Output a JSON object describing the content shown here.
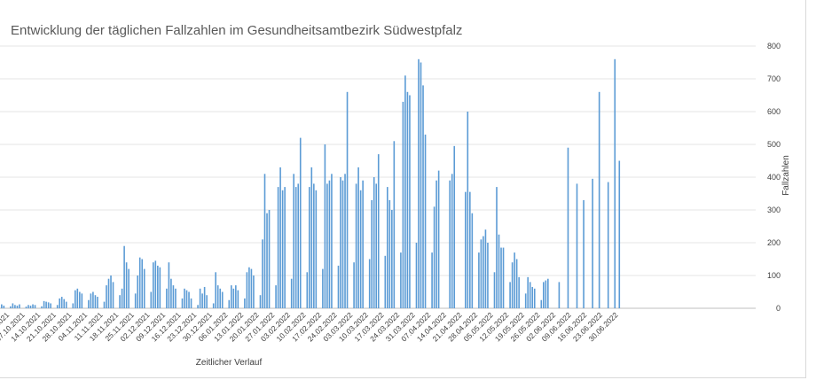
{
  "chart_data": {
    "type": "bar",
    "title": "Entwicklung der täglichen Fallzahlen im Gesundheitsamtbezirk Südwestpfalz",
    "xlabel": "Zeitlicher Verlauf",
    "ylabel": "Fallzahlen",
    "ylim": [
      0,
      800
    ],
    "yticks": [
      0,
      100,
      200,
      300,
      400,
      500,
      600,
      700,
      800
    ],
    "y_axis_side": "right",
    "grid": true,
    "legend": "none",
    "bar_color": "#5b9bd5",
    "x_tick_labels": [
      "30.09.2021",
      "07.10.2021",
      "14.10.2021",
      "21.10.2021",
      "28.10.2021",
      "04.11.2021",
      "11.11.2021",
      "18.11.2021",
      "25.11.2021",
      "02.12.2021",
      "09.12.2021",
      "16.12.2021",
      "23.12.2021",
      "30.12.2021",
      "06.01.2022",
      "13.01.2022",
      "20.01.2022",
      "27.01.2022",
      "03.02.2022",
      "10.02.2022",
      "17.02.2022",
      "24.02.2022",
      "03.03.2022",
      "10.03.2022",
      "17.03.2022",
      "24.03.2022",
      "31.03.2022",
      "07.04.2022",
      "14.04.2022",
      "21.04.2022",
      "28.04.2022",
      "05.05.2022",
      "12.05.2022",
      "19.05.2022",
      "26.05.2022",
      "02.06.2022",
      "09.06.2022",
      "16.06.2022",
      "23.06.2022",
      "30.06.2022"
    ],
    "weeks": [
      [
        10,
        5,
        12,
        8,
        0,
        0,
        6
      ],
      [
        15,
        10,
        8,
        12,
        0,
        0,
        5
      ],
      [
        10,
        8,
        12,
        10,
        0,
        0,
        6
      ],
      [
        22,
        20,
        18,
        15,
        0,
        0,
        10
      ],
      [
        30,
        35,
        28,
        20,
        0,
        0,
        15
      ],
      [
        55,
        60,
        50,
        45,
        0,
        0,
        25
      ],
      [
        45,
        50,
        40,
        35,
        0,
        0,
        20
      ],
      [
        70,
        90,
        100,
        80,
        0,
        0,
        40
      ],
      [
        60,
        190,
        140,
        120,
        0,
        0,
        45
      ],
      [
        100,
        155,
        150,
        120,
        0,
        0,
        50
      ],
      [
        140,
        145,
        130,
        125,
        0,
        0,
        60
      ],
      [
        140,
        90,
        70,
        60,
        0,
        0,
        30
      ],
      [
        60,
        55,
        50,
        30,
        0,
        0,
        10
      ],
      [
        60,
        45,
        65,
        40,
        0,
        0,
        15
      ],
      [
        110,
        70,
        60,
        50,
        0,
        0,
        25
      ],
      [
        70,
        60,
        70,
        55,
        0,
        0,
        30
      ],
      [
        110,
        125,
        120,
        100,
        0,
        0,
        40
      ],
      [
        210,
        410,
        290,
        300,
        0,
        0,
        70
      ],
      [
        370,
        430,
        360,
        370,
        0,
        0,
        90
      ],
      [
        410,
        370,
        380,
        520,
        0,
        0,
        110
      ],
      [
        370,
        430,
        380,
        360,
        0,
        0,
        120
      ],
      [
        500,
        380,
        390,
        410,
        0,
        0,
        130
      ],
      [
        400,
        390,
        410,
        660,
        0,
        0,
        140
      ],
      [
        380,
        430,
        360,
        390,
        0,
        0,
        150
      ],
      [
        330,
        400,
        380,
        470,
        0,
        0,
        160
      ],
      [
        370,
        330,
        300,
        510,
        0,
        0,
        170
      ],
      [
        630,
        710,
        660,
        650,
        0,
        0,
        200
      ],
      [
        760,
        750,
        680,
        530,
        0,
        0,
        170
      ],
      [
        310,
        390,
        420,
        0,
        0,
        0,
        0
      ],
      [
        390,
        410,
        495,
        0,
        0,
        0,
        0
      ],
      [
        355,
        600,
        355,
        290,
        0,
        0,
        170
      ],
      [
        210,
        220,
        240,
        200,
        0,
        0,
        110
      ],
      [
        370,
        225,
        185,
        185,
        0,
        0,
        80
      ],
      [
        140,
        170,
        150,
        95,
        0,
        0,
        45
      ],
      [
        95,
        80,
        65,
        60,
        0,
        0,
        25
      ],
      [
        80,
        85,
        90,
        0,
        0,
        0,
        0
      ],
      [
        80,
        0,
        0,
        0,
        490,
        0,
        0
      ],
      [
        0,
        380,
        0,
        0,
        330,
        0,
        0
      ],
      [
        0,
        395,
        0,
        0,
        660,
        0,
        0
      ],
      [
        0,
        385,
        0,
        0,
        760,
        0,
        450
      ]
    ]
  }
}
